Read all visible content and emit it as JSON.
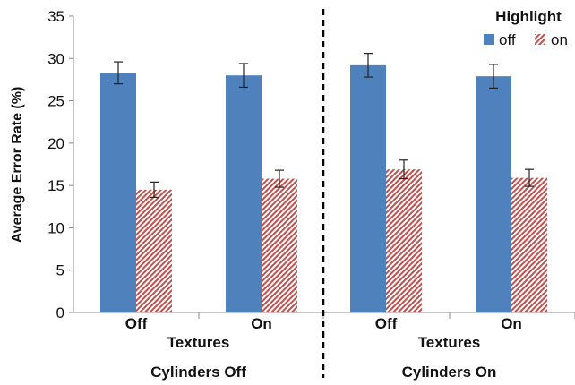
{
  "chart_data": {
    "type": "bar",
    "xlabel": "",
    "ylabel": "Average Error Rate (%)",
    "ylim": [
      0,
      35
    ],
    "yticks": [
      0,
      5,
      10,
      15,
      20,
      25,
      30,
      35
    ],
    "legend": {
      "title": "Highlight",
      "placement": "top-right"
    },
    "grid": false,
    "panels": [
      {
        "label": "Cylinders Off",
        "group_axis_label": "Textures",
        "categories": [
          "Off",
          "On"
        ],
        "series": [
          {
            "name": "off",
            "values": [
              28.3,
              28.0
            ],
            "error": [
              1.3,
              1.4
            ]
          },
          {
            "name": "on",
            "values": [
              14.5,
              15.8
            ],
            "error": [
              0.9,
              1.0
            ]
          }
        ]
      },
      {
        "label": "Cylinders On",
        "group_axis_label": "Textures",
        "categories": [
          "Off",
          "On"
        ],
        "series": [
          {
            "name": "off",
            "values": [
              29.2,
              27.9
            ],
            "error": [
              1.4,
              1.4
            ]
          },
          {
            "name": "on",
            "values": [
              16.9,
              15.9
            ],
            "error": [
              1.1,
              1.0
            ]
          }
        ]
      }
    ]
  },
  "colors": {
    "off": "#4f81bd",
    "on_hatch": "#c0504d"
  }
}
